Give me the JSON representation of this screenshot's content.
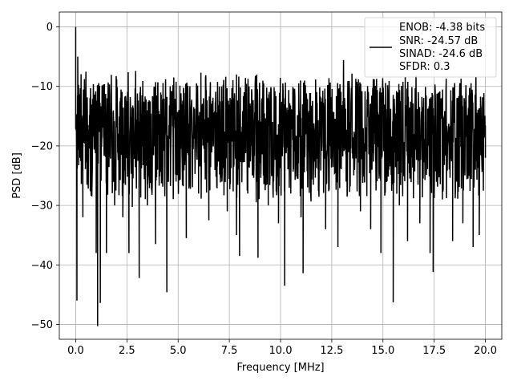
{
  "chart_data": {
    "type": "line",
    "title": "",
    "xlabel": "Frequency [MHz]",
    "ylabel": "PSD [dB]",
    "xlim": [
      -0.8,
      20.8
    ],
    "ylim": [
      -52.5,
      2.5
    ],
    "x_ticks": [
      0,
      2.5,
      5,
      7.5,
      10,
      12.5,
      15,
      17.5,
      20
    ],
    "x_tick_labels": [
      "0.0",
      "2.5",
      "5.0",
      "7.5",
      "10.0",
      "12.5",
      "15.0",
      "17.5",
      "20.0"
    ],
    "y_ticks": [
      0,
      -10,
      -20,
      -30,
      -40,
      -50
    ],
    "y_tick_labels": [
      "0",
      "−10",
      "−20",
      "−30",
      "−40",
      "−50"
    ],
    "grid": true,
    "legend_placement": "top-right",
    "series_color": "#000000",
    "legend": {
      "lines": [
        "ENOB: -4.38 bits",
        "SNR: -24.57 dB",
        "SINAD: -24.6 dB",
        "SFDR: 0.3"
      ]
    },
    "series": [
      {
        "x": [
          0.0,
          0.06,
          0.1,
          0.15,
          0.2,
          0.35,
          0.55,
          0.75,
          1.0,
          1.07,
          1.1,
          1.2,
          1.5,
          1.9,
          2.3,
          2.6,
          3.1,
          3.5,
          3.9,
          4.0,
          4.45,
          4.9,
          5.4,
          6.0,
          6.5,
          6.9,
          7.4,
          7.85,
          8.0,
          8.4,
          8.9,
          9.4,
          9.9,
          10.2,
          10.5,
          11.0,
          11.1,
          11.6,
          12.2,
          12.8,
          13.2,
          13.9,
          14.4,
          14.9,
          15.5,
          15.8,
          16.2,
          16.8,
          17.3,
          17.45,
          17.9,
          18.4,
          18.9,
          19.4,
          19.7,
          20.0
        ],
        "y": [
          0.0,
          -46.0,
          -5.0,
          -14.0,
          -22.0,
          -32.0,
          -12.0,
          -28.0,
          -38.0,
          -50.3,
          -20.0,
          -46.4,
          -38.0,
          -30.0,
          -32.0,
          -38.0,
          -42.2,
          -30.0,
          -36.5,
          -24.0,
          -44.6,
          -26.0,
          -35.5,
          -28.0,
          -32.5,
          -27.0,
          -31.0,
          -35.0,
          -38.5,
          -28.0,
          -38.8,
          -30.0,
          -33.0,
          -43.5,
          -28.0,
          -32.0,
          -41.4,
          -26.0,
          -34.0,
          -37.0,
          -26.0,
          -31.0,
          -34.0,
          -38.0,
          -46.3,
          -30.0,
          -36.0,
          -33.0,
          -38.0,
          -41.2,
          -29.0,
          -36.0,
          -33.0,
          -37.0,
          -35.0,
          -22.0
        ]
      }
    ]
  }
}
